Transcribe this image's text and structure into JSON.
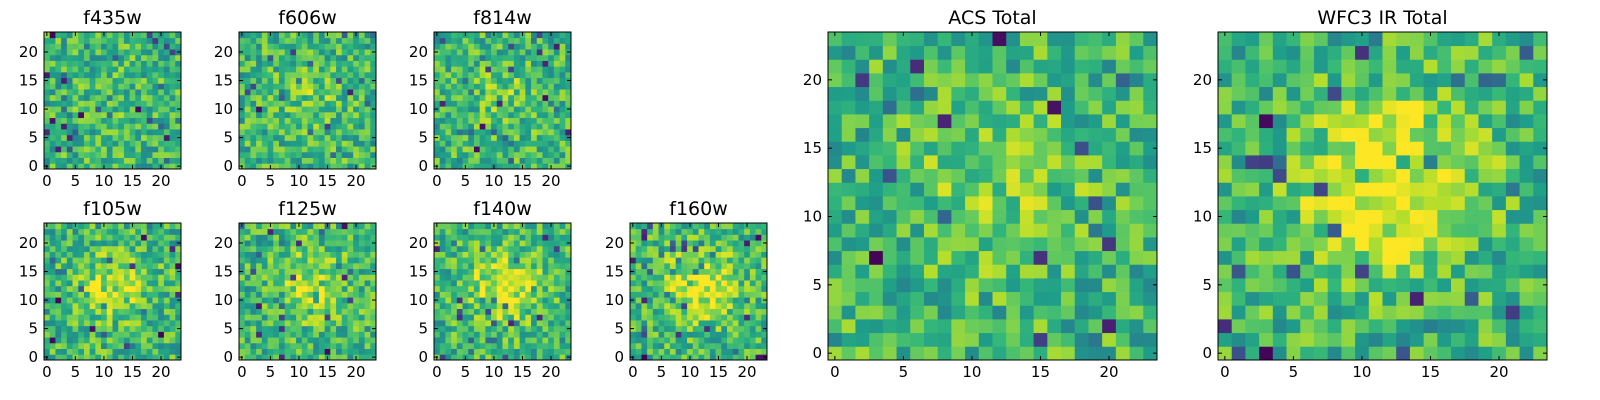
{
  "chart_data": [
    {
      "type": "heatmap",
      "title": "f435w",
      "seed": 11,
      "peak": 0.1,
      "shape": [
        24,
        24
      ],
      "colormap": "viridis",
      "xticks": [
        "0",
        "5",
        "10",
        "15",
        "20"
      ],
      "yticks": [
        "0",
        "5",
        "10",
        "15",
        "20"
      ]
    },
    {
      "type": "heatmap",
      "title": "f606w",
      "seed": 23,
      "peak": 0.2,
      "shape": [
        24,
        24
      ],
      "colormap": "viridis",
      "xticks": [
        "0",
        "5",
        "10",
        "15",
        "20"
      ],
      "yticks": [
        "0",
        "5",
        "10",
        "15",
        "20"
      ]
    },
    {
      "type": "heatmap",
      "title": "f814w",
      "seed": 37,
      "peak": 0.2,
      "shape": [
        24,
        24
      ],
      "colormap": "viridis",
      "xticks": [
        "0",
        "5",
        "10",
        "15",
        "20"
      ],
      "yticks": [
        "0",
        "5",
        "10",
        "15",
        "20"
      ]
    },
    {
      "type": "heatmap",
      "title": "f105w",
      "seed": 41,
      "peak": 0.4,
      "shape": [
        24,
        24
      ],
      "colormap": "viridis",
      "xticks": [
        "0",
        "5",
        "10",
        "15",
        "20"
      ],
      "yticks": [
        "0",
        "5",
        "10",
        "15",
        "20"
      ]
    },
    {
      "type": "heatmap",
      "title": "f125w",
      "seed": 53,
      "peak": 0.45,
      "shape": [
        24,
        24
      ],
      "colormap": "viridis",
      "xticks": [
        "0",
        "5",
        "10",
        "15",
        "20"
      ],
      "yticks": [
        "0",
        "5",
        "10",
        "15",
        "20"
      ]
    },
    {
      "type": "heatmap",
      "title": "f140w",
      "seed": 67,
      "peak": 0.55,
      "shape": [
        24,
        24
      ],
      "colormap": "viridis",
      "xticks": [
        "0",
        "5",
        "10",
        "15",
        "20"
      ],
      "yticks": [
        "0",
        "5",
        "10",
        "15",
        "20"
      ]
    },
    {
      "type": "heatmap",
      "title": "f160w",
      "seed": 71,
      "peak": 0.6,
      "shape": [
        24,
        24
      ],
      "colormap": "viridis",
      "xticks": [
        "0",
        "5",
        "10",
        "15",
        "20"
      ],
      "yticks": [
        "0",
        "5",
        "10",
        "15",
        "20"
      ]
    },
    {
      "type": "heatmap",
      "title": "ACS Total",
      "seed": 83,
      "peak": 0.25,
      "shape": [
        24,
        24
      ],
      "colormap": "viridis",
      "xticks": [
        "0",
        "5",
        "10",
        "15",
        "20"
      ],
      "yticks": [
        "0",
        "5",
        "10",
        "15",
        "20"
      ]
    },
    {
      "type": "heatmap",
      "title": "WFC3 IR Total",
      "seed": 97,
      "peak": 0.7,
      "shape": [
        24,
        24
      ],
      "colormap": "viridis",
      "xticks": [
        "0",
        "5",
        "10",
        "15",
        "20"
      ],
      "yticks": [
        "0",
        "5",
        "10",
        "15",
        "20"
      ]
    }
  ]
}
